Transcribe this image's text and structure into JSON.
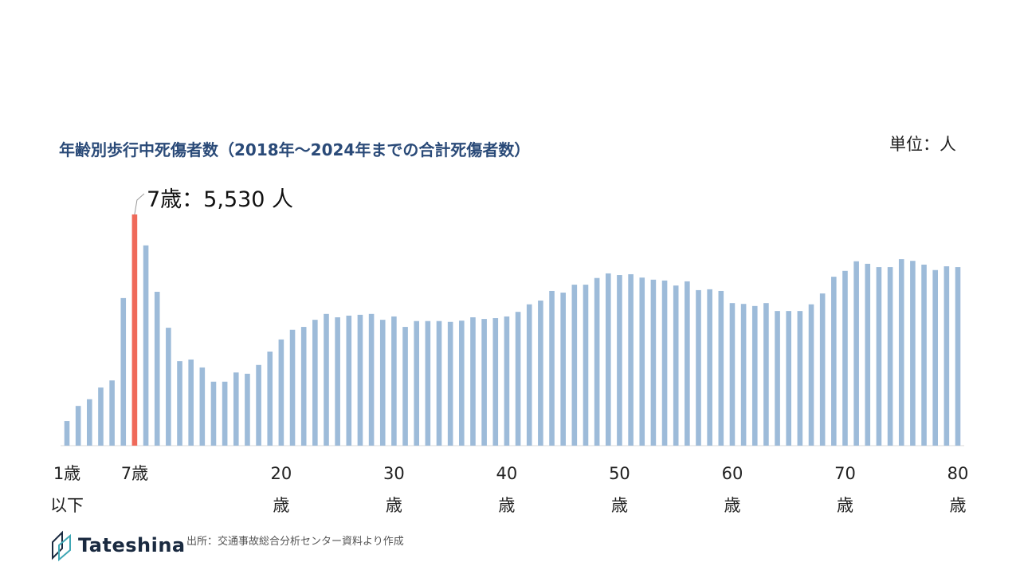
{
  "chart_data": {
    "type": "bar",
    "title": "年齢別歩行中死傷者数（2018年～2024年までの合計死傷者数）",
    "unit_label": "単位：人",
    "annotation": {
      "text": "7歳：5,530 人",
      "category_index": 6
    },
    "categories": [
      "1歳以下",
      null,
      null,
      null,
      null,
      null,
      "7歳",
      null,
      null,
      null,
      null,
      null,
      null,
      null,
      null,
      null,
      null,
      null,
      null,
      "20歳",
      null,
      null,
      null,
      null,
      null,
      null,
      null,
      null,
      null,
      "30歳",
      null,
      null,
      null,
      null,
      null,
      null,
      null,
      null,
      null,
      "40歳",
      null,
      null,
      null,
      null,
      null,
      null,
      null,
      null,
      null,
      "50歳",
      null,
      null,
      null,
      null,
      null,
      null,
      null,
      null,
      null,
      "60歳",
      null,
      null,
      null,
      null,
      null,
      null,
      null,
      null,
      null,
      "70歳",
      null,
      null,
      null,
      null,
      null,
      null,
      null,
      null,
      null,
      "80歳"
    ],
    "values": [
      590,
      950,
      1110,
      1390,
      1560,
      3530,
      5530,
      4790,
      3680,
      2820,
      2020,
      2060,
      1870,
      1530,
      1530,
      1750,
      1720,
      1930,
      2250,
      2540,
      2770,
      2840,
      3010,
      3150,
      3070,
      3110,
      3130,
      3150,
      3010,
      3090,
      2840,
      2980,
      2980,
      2980,
      2960,
      2990,
      3070,
      3030,
      3050,
      3090,
      3200,
      3380,
      3470,
      3700,
      3660,
      3850,
      3850,
      4010,
      4120,
      4080,
      4100,
      4020,
      3970,
      3950,
      3830,
      3930,
      3720,
      3740,
      3700,
      3410,
      3390,
      3340,
      3410,
      3220,
      3220,
      3220,
      3380,
      3640,
      4040,
      4180,
      4410,
      4350,
      4270,
      4270,
      4460,
      4420,
      4330,
      4200,
      4290,
      4270
    ],
    "colors": [
      "#9dbbd9",
      "#9dbbd9",
      "#9dbbd9",
      "#9dbbd9",
      "#9dbbd9",
      "#9dbbd9",
      "#ef6a5a",
      "#9dbbd9",
      "#9dbbd9",
      "#9dbbd9",
      "#9dbbd9",
      "#9dbbd9",
      "#9dbbd9",
      "#9dbbd9",
      "#9dbbd9",
      "#9dbbd9",
      "#9dbbd9",
      "#9dbbd9",
      "#9dbbd9",
      "#9dbbd9",
      "#9dbbd9",
      "#9dbbd9",
      "#9dbbd9",
      "#9dbbd9",
      "#9dbbd9",
      "#9dbbd9",
      "#9dbbd9",
      "#9dbbd9",
      "#9dbbd9",
      "#9dbbd9",
      "#9dbbd9",
      "#9dbbd9",
      "#9dbbd9",
      "#9dbbd9",
      "#9dbbd9",
      "#9dbbd9",
      "#9dbbd9",
      "#9dbbd9",
      "#9dbbd9",
      "#9dbbd9",
      "#9dbbd9",
      "#9dbbd9",
      "#9dbbd9",
      "#9dbbd9",
      "#9dbbd9",
      "#9dbbd9",
      "#9dbbd9",
      "#9dbbd9",
      "#9dbbd9",
      "#9dbbd9",
      "#9dbbd9",
      "#9dbbd9",
      "#9dbbd9",
      "#9dbbd9",
      "#9dbbd9",
      "#9dbbd9",
      "#9dbbd9",
      "#9dbbd9",
      "#9dbbd9",
      "#9dbbd9",
      "#9dbbd9",
      "#9dbbd9",
      "#9dbbd9",
      "#9dbbd9",
      "#9dbbd9",
      "#9dbbd9",
      "#9dbbd9",
      "#9dbbd9",
      "#9dbbd9",
      "#9dbbd9",
      "#9dbbd9",
      "#9dbbd9",
      "#9dbbd9",
      "#9dbbd9",
      "#9dbbd9",
      "#9dbbd9",
      "#9dbbd9",
      "#9dbbd9",
      "#9dbbd9",
      "#9dbbd9"
    ]
  },
  "footer": {
    "source": "出所：交通事故総合分析センター資料より作成",
    "logo": "Tateshina"
  }
}
